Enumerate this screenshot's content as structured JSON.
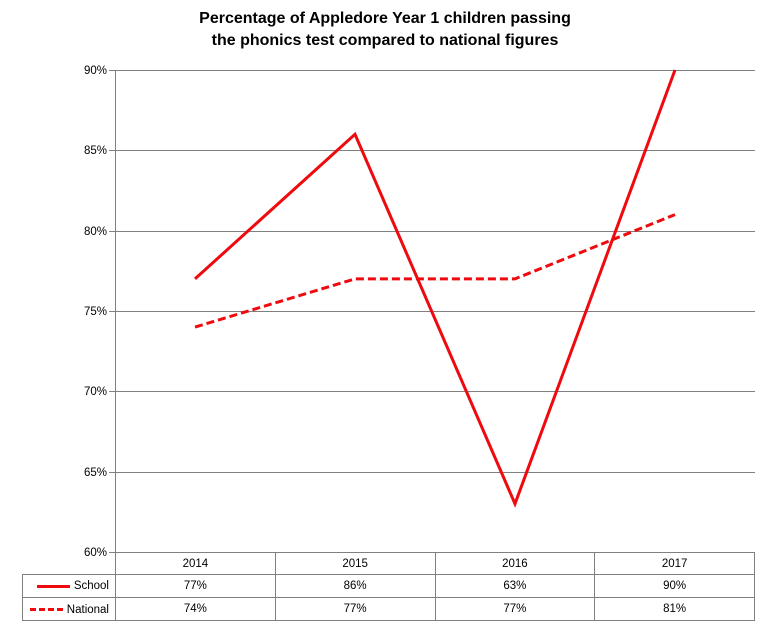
{
  "title": {
    "line1": "Percentage of Appledore Year 1 children passing",
    "line2": "the phonics test compared to national figures"
  },
  "colors": {
    "series_red": "#ee0a0e",
    "gridline": "#808080",
    "text": "#000000"
  },
  "chart_data": {
    "type": "line",
    "title": "Percentage of Appledore Year 1 children passing the phonics test compared to national figures",
    "categories": [
      "2014",
      "2015",
      "2016",
      "2017"
    ],
    "series": [
      {
        "name": "School",
        "style": "solid",
        "color": "#ee0a0e",
        "values": [
          77,
          86,
          63,
          90
        ]
      },
      {
        "name": "National",
        "style": "dashed",
        "color": "#ee0a0e",
        "values": [
          74,
          77,
          77,
          81
        ]
      }
    ],
    "xlabel": "",
    "ylabel": "",
    "ylim": [
      60,
      90
    ],
    "ytick_step": 5,
    "ytick_labels": [
      "60%",
      "65%",
      "70%",
      "75%",
      "80%",
      "85%",
      "90%"
    ],
    "grid": true,
    "legend_position": "data-table-left"
  },
  "data_table": {
    "years": [
      "2014",
      "2015",
      "2016",
      "2017"
    ],
    "rows": [
      {
        "label": "School",
        "values": [
          "77%",
          "86%",
          "63%",
          "90%"
        ]
      },
      {
        "label": "National",
        "values": [
          "74%",
          "77%",
          "77%",
          "81%"
        ]
      }
    ]
  }
}
